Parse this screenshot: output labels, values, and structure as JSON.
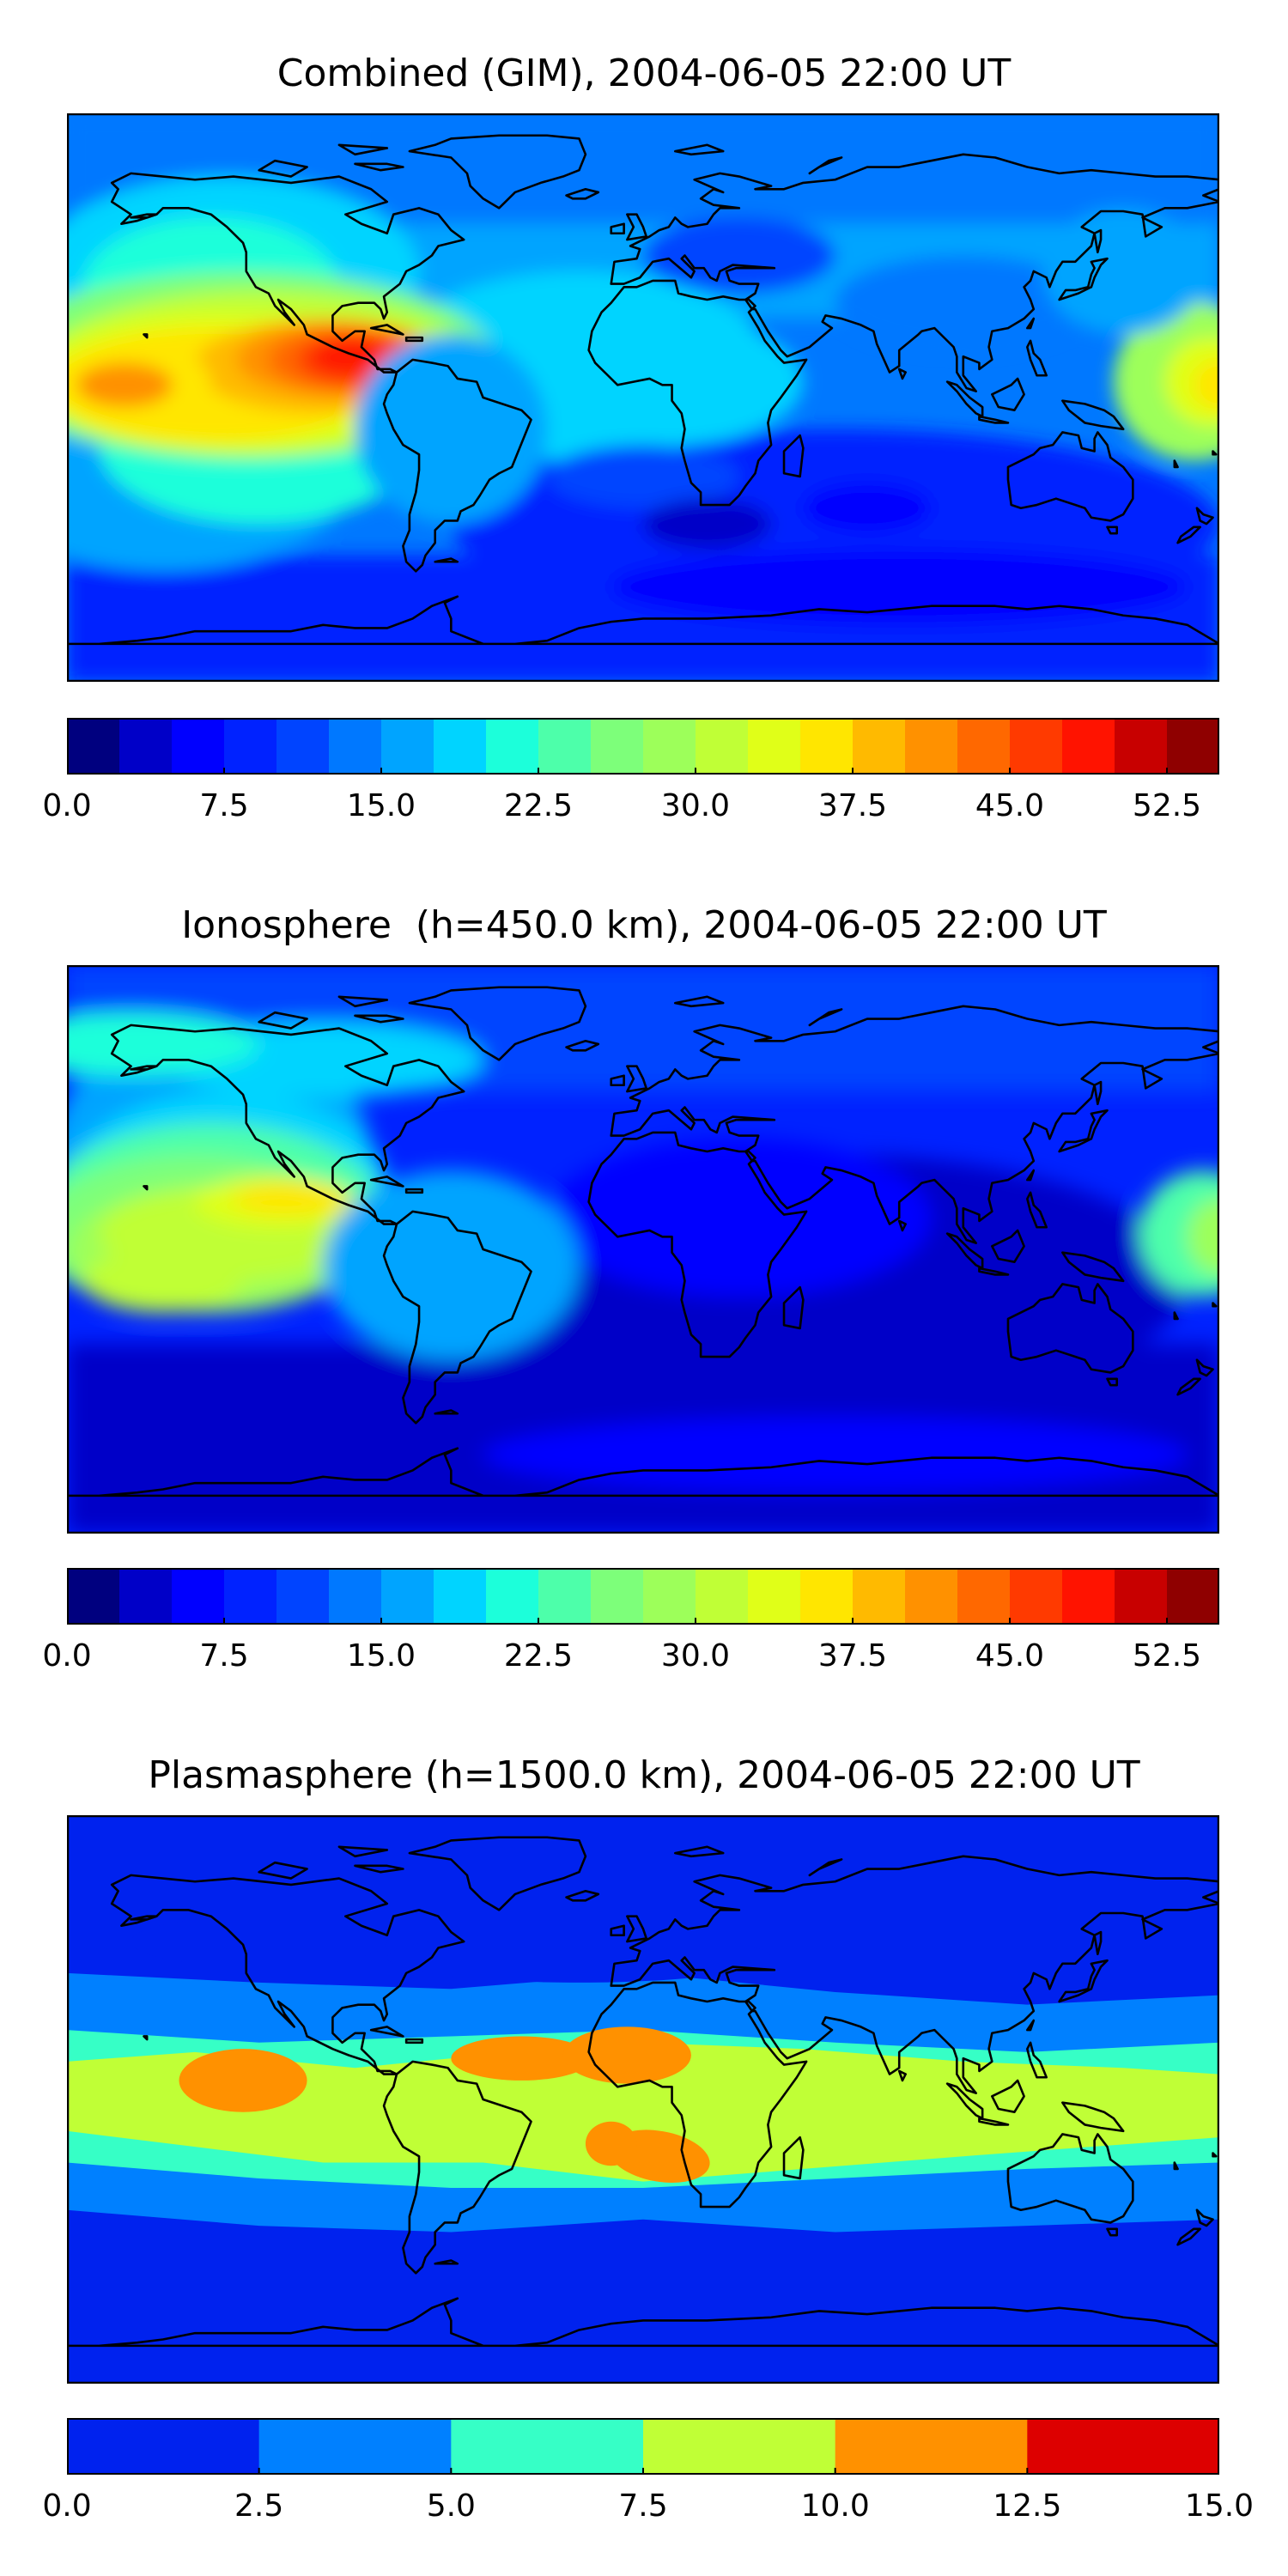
{
  "panels": [
    {
      "title": "Combined (GIM), 2004-06-05 22:00 UT",
      "kind": "combined",
      "colorbar": {
        "bounds": [
          0,
          2.5,
          5,
          7.5,
          10,
          12.5,
          15,
          17.5,
          20,
          22.5,
          25,
          27.5,
          30,
          32.5,
          35,
          37.5,
          40,
          42.5,
          45,
          47.5,
          50,
          52.5,
          55
        ],
        "colors": [
          "#00007f",
          "#0000c8",
          "#0000ff",
          "#0022ff",
          "#0044ff",
          "#0078ff",
          "#00a4ff",
          "#00d4ff",
          "#1cffda",
          "#4dffaa",
          "#7dff7a",
          "#9dff5a",
          "#c0ff36",
          "#e0ff18",
          "#ffe600",
          "#ffba00",
          "#ff9100",
          "#ff6800",
          "#ff3a00",
          "#ff1300",
          "#c80000",
          "#8f0000"
        ],
        "tick_labels": [
          "0.0",
          "7.5",
          "15.0",
          "22.5",
          "30.0",
          "37.5",
          "45.0",
          "52.5"
        ],
        "tick_values": [
          0,
          7.5,
          15,
          22.5,
          30,
          37.5,
          45,
          52.5
        ]
      }
    },
    {
      "title": "Ionosphere  (h=450.0 km), 2004-06-05 22:00 UT",
      "kind": "iono",
      "colorbar": {
        "bounds": [
          0,
          2.5,
          5,
          7.5,
          10,
          12.5,
          15,
          17.5,
          20,
          22.5,
          25,
          27.5,
          30,
          32.5,
          35,
          37.5,
          40,
          42.5,
          45,
          47.5,
          50,
          52.5,
          55
        ],
        "colors": [
          "#00007f",
          "#0000c8",
          "#0000ff",
          "#0022ff",
          "#0044ff",
          "#0078ff",
          "#00a4ff",
          "#00d4ff",
          "#1cffda",
          "#4dffaa",
          "#7dff7a",
          "#9dff5a",
          "#c0ff36",
          "#e0ff18",
          "#ffe600",
          "#ffba00",
          "#ff9100",
          "#ff6800",
          "#ff3a00",
          "#ff1300",
          "#c80000",
          "#8f0000"
        ],
        "tick_labels": [
          "0.0",
          "7.5",
          "15.0",
          "22.5",
          "30.0",
          "37.5",
          "45.0",
          "52.5"
        ],
        "tick_values": [
          0,
          7.5,
          15,
          22.5,
          30,
          37.5,
          45,
          52.5
        ]
      }
    },
    {
      "title": "Plasmasphere (h=1500.0 km), 2004-06-05 22:00 UT",
      "kind": "plasma",
      "colorbar": {
        "bounds": [
          0,
          2.5,
          5,
          7.5,
          10,
          12.5,
          15
        ],
        "colors": [
          "#0022ee",
          "#0080ff",
          "#36ffc6",
          "#c0ff36",
          "#ff9100",
          "#dd0000"
        ],
        "tick_labels": [
          "0.0",
          "2.5",
          "5.0",
          "7.5",
          "10.0",
          "12.5",
          "15.0"
        ],
        "tick_values": [
          0,
          2.5,
          5,
          7.5,
          10,
          12.5,
          15
        ]
      }
    }
  ],
  "chart_data": [
    {
      "type": "heatmap",
      "title": "Combined (GIM), 2004-06-05 22:00 UT",
      "projection": "global lon-lat map with coastlines",
      "xlim": [
        -180,
        180
      ],
      "ylim": [
        -90,
        90
      ],
      "value_range": [
        0,
        55
      ],
      "levels_step": 2.5,
      "features": [
        {
          "lon": -90,
          "lat": 12,
          "value": 50
        },
        {
          "lon": -160,
          "lat": 5,
          "value": 40
        },
        {
          "lon": 175,
          "lat": 5,
          "value": 33
        },
        {
          "lon": -120,
          "lat": 45,
          "value": 22
        },
        {
          "lon": 20,
          "lat": 0,
          "value": 17
        },
        {
          "lon": 80,
          "lat": -10,
          "value": 9
        },
        {
          "lon": 60,
          "lat": -70,
          "value": 4
        }
      ]
    },
    {
      "type": "heatmap",
      "title": "Ionosphere  (h=450.0 km), 2004-06-05 22:00 UT",
      "projection": "global lon-lat map with coastlines",
      "xlim": [
        -180,
        180
      ],
      "ylim": [
        -90,
        90
      ],
      "value_range": [
        0,
        55
      ],
      "levels_step": 2.5,
      "features": [
        {
          "lon": -110,
          "lat": 15,
          "value": 37
        },
        {
          "lon": -160,
          "lat": 0,
          "value": 30
        },
        {
          "lon": 175,
          "lat": 5,
          "value": 25
        },
        {
          "lon": 0,
          "lat": 0,
          "value": 6
        },
        {
          "lon": 60,
          "lat": -30,
          "value": 2
        }
      ]
    },
    {
      "type": "heatmap",
      "title": "Plasmasphere (h=1500.0 km), 2004-06-05 22:00 UT",
      "projection": "global lon-lat map with coastlines",
      "xlim": [
        -180,
        180
      ],
      "ylim": [
        -90,
        90
      ],
      "value_range": [
        0,
        15
      ],
      "levels_step": 2.5,
      "features": [
        {
          "lon": -125,
          "lat": 8,
          "value": 11
        },
        {
          "lon": -20,
          "lat": 12,
          "value": 11
        },
        {
          "lon": 0,
          "lat": -18,
          "value": 11
        },
        {
          "lon": 60,
          "lat": 0,
          "value": 9
        },
        {
          "lon": 0,
          "lat": 45,
          "value": 4
        },
        {
          "lon": 60,
          "lat": -60,
          "value": 1
        }
      ]
    }
  ]
}
